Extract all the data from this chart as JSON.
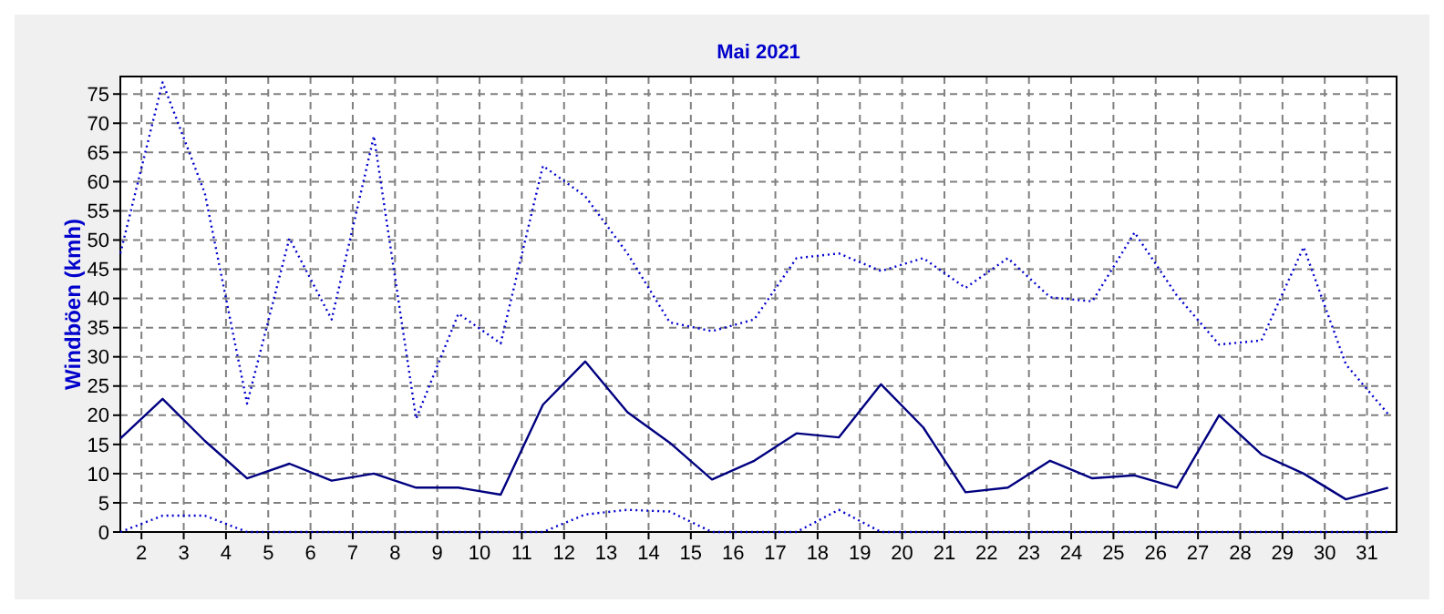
{
  "chart_data": {
    "type": "line",
    "title": "Mai 2021",
    "ylabel": "Windböen (kmh)",
    "x": [
      1.5,
      2.5,
      3.5,
      4.5,
      5.5,
      6.5,
      7.5,
      8.5,
      9.5,
      10.5,
      11.5,
      12.5,
      13.5,
      14.5,
      15.5,
      16.5,
      17.5,
      18.5,
      19.5,
      20.5,
      21.5,
      22.5,
      23.5,
      24.5,
      25.5,
      26.5,
      27.5,
      28.5,
      29.5,
      30.5,
      31.5
    ],
    "xlim": [
      1.5,
      31.7
    ],
    "xticks": [
      2,
      3,
      4,
      5,
      6,
      7,
      8,
      9,
      10,
      11,
      12,
      13,
      14,
      15,
      16,
      17,
      18,
      19,
      20,
      21,
      22,
      23,
      24,
      25,
      26,
      27,
      28,
      29,
      30,
      31
    ],
    "ylim": [
      0,
      78
    ],
    "yticks": [
      0,
      5,
      10,
      15,
      20,
      25,
      30,
      35,
      40,
      45,
      50,
      55,
      60,
      65,
      70,
      75
    ],
    "grid": true,
    "marker": "none",
    "series": [
      {
        "color": "#0000cc",
        "line_style": "dotted",
        "values": [
          47.7,
          77,
          58,
          22,
          50.3,
          36.4,
          67.8,
          19.4,
          37.4,
          32.3,
          62.7,
          57.5,
          47.7,
          35.9,
          34.4,
          36.4,
          46.9,
          47.7,
          44.7,
          46.9,
          41.8,
          46.9,
          40.2,
          39.5,
          51.3,
          40.5,
          32.1,
          32.8,
          48.8,
          28.7,
          20.2
        ]
      },
      {
        "color": "#000080",
        "line_style": "solid",
        "values": [
          16,
          22.8,
          15.6,
          9.2,
          11.7,
          8.8,
          10,
          7.6,
          7.6,
          6.4,
          21.8,
          29.2,
          20.5,
          15.3,
          9,
          12.2,
          16.9,
          16.2,
          25.3,
          17.9,
          6.8,
          7.6,
          12.2,
          9.2,
          9.7,
          7.6,
          20,
          13.3,
          10,
          5.6,
          7.6
        ]
      },
      {
        "color": "#0000cc",
        "line_style": "dotted",
        "values": [
          0,
          2.8,
          2.8,
          0,
          0,
          0,
          0,
          0,
          0,
          0,
          0,
          3,
          3.8,
          3.5,
          0,
          0,
          0,
          3.8,
          0,
          0,
          0,
          0,
          0,
          0,
          0,
          0,
          0,
          0,
          0,
          0,
          0
        ]
      }
    ]
  }
}
